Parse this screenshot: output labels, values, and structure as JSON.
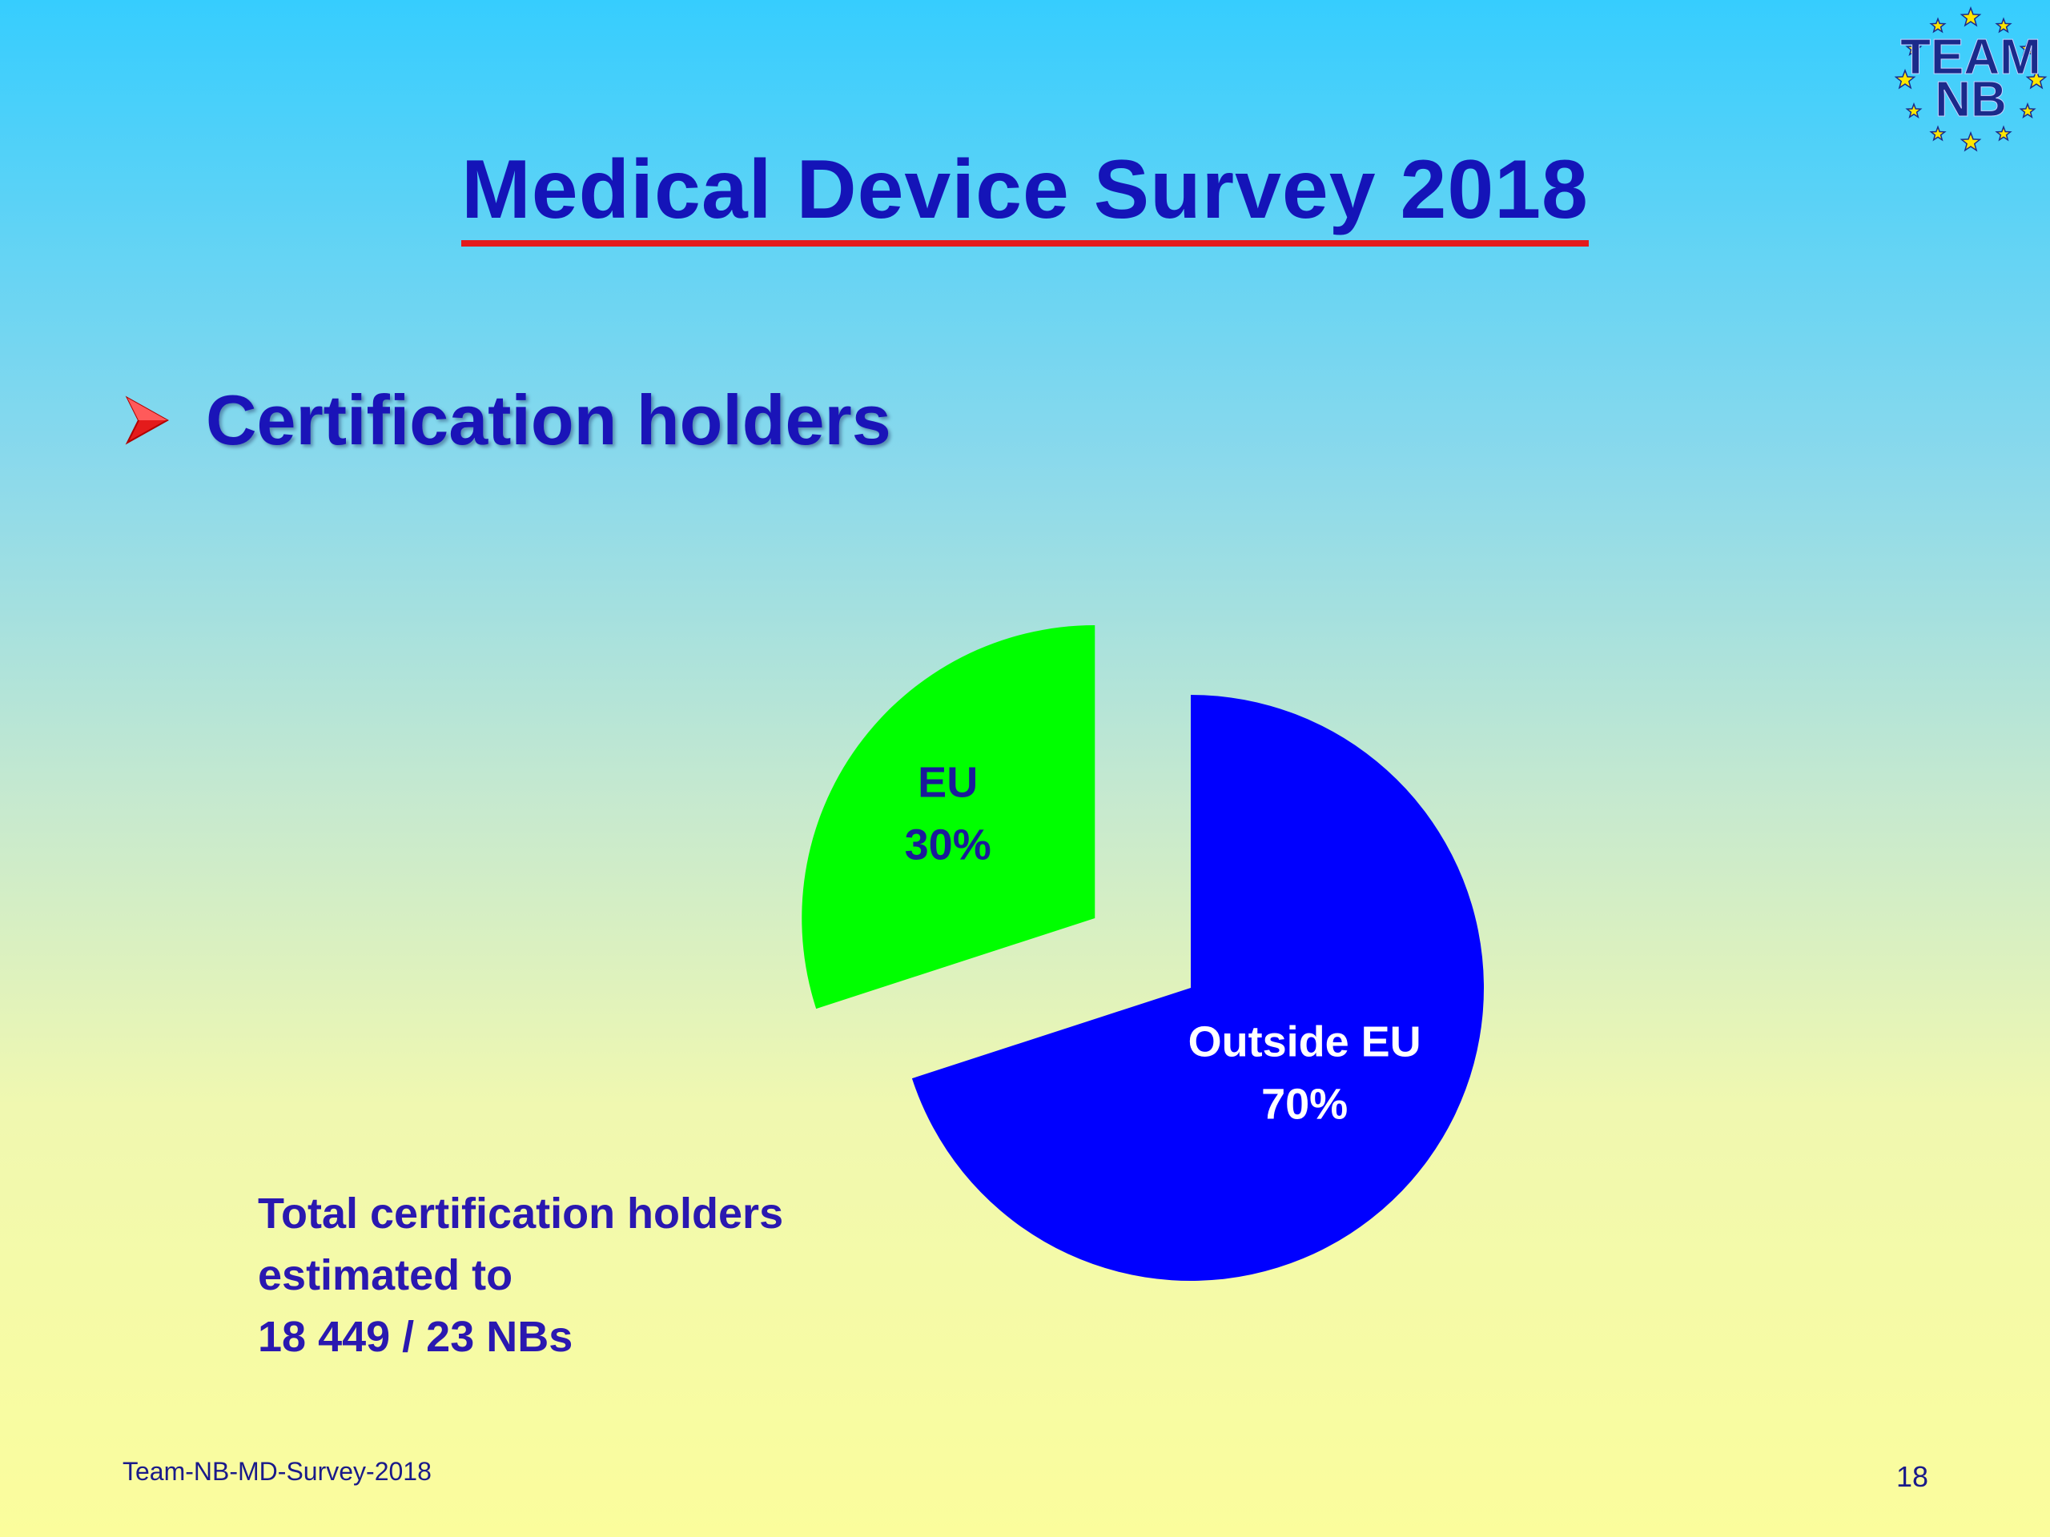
{
  "slide": {
    "title": "Medical Device Survey 2018",
    "bullet": "Certification holders",
    "bullet_icon": "arrow-bullet-icon",
    "note_lines": [
      "Total certification holders",
      "estimated to",
      "18 449 / 23 NBs"
    ],
    "footer_left": "Team-NB-MD-Survey-2018",
    "page_number": "18",
    "logo_top": "TEAM",
    "logo_bottom": "NB"
  },
  "colors": {
    "title": "#1414b8",
    "title_underline": "#e41b1b",
    "bullet_arrow": "#e41b1b",
    "eu": "#00ff00",
    "outside_eu": "#0000ff",
    "eu_label": "#1a1a9a",
    "outside_label": "#ffffff"
  },
  "chart_data": {
    "type": "pie",
    "exploded": true,
    "slices": [
      {
        "name": "EU",
        "value": 30,
        "label_line1": "EU",
        "label_line2": "30%"
      },
      {
        "name": "Outside EU",
        "value": 70,
        "label_line1": "Outside EU",
        "label_line2": "70%"
      }
    ]
  }
}
